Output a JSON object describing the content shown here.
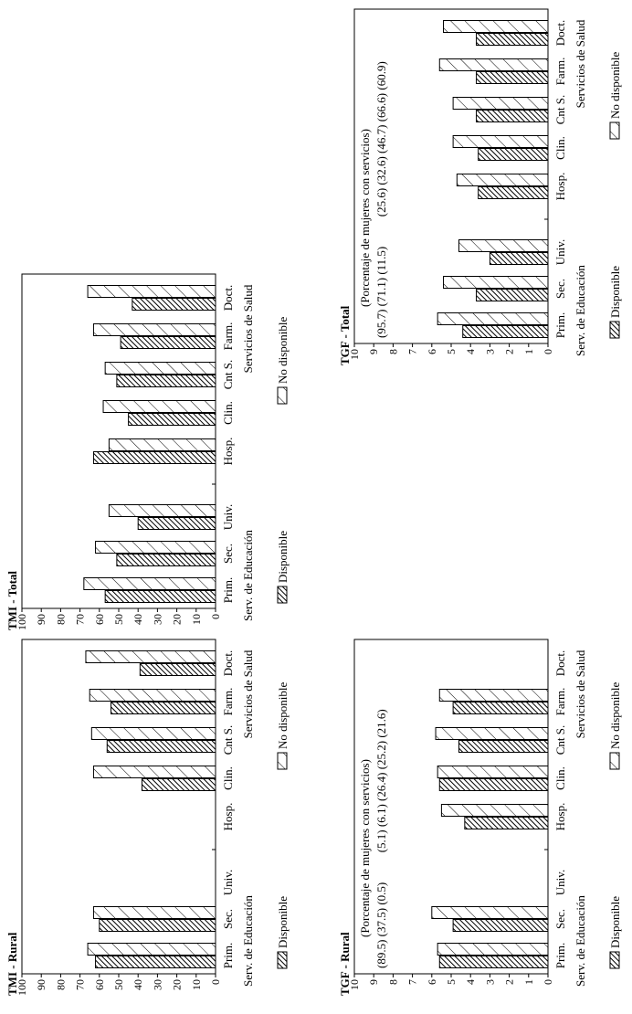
{
  "chart_data": [
    {
      "type": "bar",
      "title": "TMI - Total",
      "ylim": [
        0,
        100
      ],
      "yticks": [
        "0",
        "10",
        "20",
        "30",
        "40",
        "50",
        "60",
        "70",
        "80",
        "90",
        "100"
      ],
      "categories": [
        "Prim.",
        "Sec.",
        "Univ.",
        "Hosp.",
        "Clin.",
        "Cnt S.",
        "Farm.",
        "Doct."
      ],
      "groups": [
        "Serv. de Educación",
        "Servicios de Salud"
      ],
      "percent_header": "",
      "percents": "",
      "series": [
        {
          "name": "Disponible",
          "values": [
            57,
            51,
            40,
            63,
            45,
            51,
            49,
            43
          ]
        },
        {
          "name": "No disponible",
          "values": [
            68,
            62,
            55,
            55,
            58,
            57,
            63,
            66
          ]
        }
      ],
      "legend": [
        "Disponible",
        "No disponible"
      ]
    },
    {
      "type": "bar",
      "title": "TGF - Total",
      "ylim": [
        0,
        10
      ],
      "yticks": [
        "0",
        "1",
        "2",
        "3",
        "4",
        "5",
        "6",
        "7",
        "8",
        "9",
        "10"
      ],
      "categories": [
        "Prim.",
        "Sec.",
        "Univ.",
        "Hosp.",
        "Clin.",
        "Cnt S.",
        "Farm.",
        "Doct."
      ],
      "groups": [
        "Serv. de Educación",
        "Servicios de Salud"
      ],
      "percent_header": "(Porcentaje de mujeres con servicios)",
      "percents": "(95.7) (71.1) (11.5)          (25.6) (32.6) (46.7) (66.6) (60.9)",
      "series": [
        {
          "name": "Disponible",
          "values": [
            4.4,
            3.7,
            3.0,
            3.6,
            3.6,
            3.7,
            3.7,
            3.7
          ]
        },
        {
          "name": "No disponible",
          "values": [
            5.7,
            5.4,
            4.6,
            4.7,
            4.9,
            4.9,
            5.6,
            5.4
          ]
        }
      ],
      "legend": [
        "Disponible",
        "No disponible"
      ]
    },
    {
      "type": "bar",
      "title": "TMI - Rural",
      "ylim": [
        0,
        100
      ],
      "yticks": [
        "0",
        "10",
        "20",
        "30",
        "40",
        "50",
        "60",
        "70",
        "80",
        "90",
        "100"
      ],
      "categories": [
        "Prim.",
        "Sec.",
        "Univ.",
        "Hosp.",
        "Clin.",
        "Cnt S.",
        "Farm.",
        "Doct."
      ],
      "groups": [
        "Serv. de Educación",
        "Servicios de Salud"
      ],
      "percent_header": "",
      "percents": "",
      "series": [
        {
          "name": "Disponible",
          "values": [
            62,
            60,
            null,
            null,
            38,
            56,
            54,
            39
          ]
        },
        {
          "name": "No disponible",
          "values": [
            66,
            63,
            null,
            null,
            63,
            64,
            65,
            67
          ]
        }
      ],
      "legend": [
        "Disponible",
        "No disponible"
      ]
    },
    {
      "type": "bar",
      "title": "TGF - Rural",
      "ylim": [
        0,
        10
      ],
      "yticks": [
        "0",
        "1",
        "2",
        "3",
        "4",
        "5",
        "6",
        "7",
        "8",
        "9",
        "10"
      ],
      "categories": [
        "Prim.",
        "Sec.",
        "Univ.",
        "Hosp.",
        "Clin.",
        "Cnt S.",
        "Farm.",
        "Doct."
      ],
      "groups": [
        "Serv. de Educación",
        "Servicios de Salud"
      ],
      "percent_header": "(Porcentaje de mujeres con servicios)",
      "percents": "(89.5) (37.5) (0.5)          (5.1) (6.1) (26.4) (25.2) (21.6)",
      "series": [
        {
          "name": "Disponible",
          "values": [
            5.6,
            4.9,
            null,
            4.3,
            5.6,
            4.6,
            4.9,
            null
          ]
        },
        {
          "name": "No disponible",
          "values": [
            5.7,
            6.0,
            null,
            5.5,
            5.7,
            5.8,
            5.6,
            null
          ]
        }
      ],
      "legend": [
        "Disponible",
        "No disponible"
      ]
    }
  ]
}
